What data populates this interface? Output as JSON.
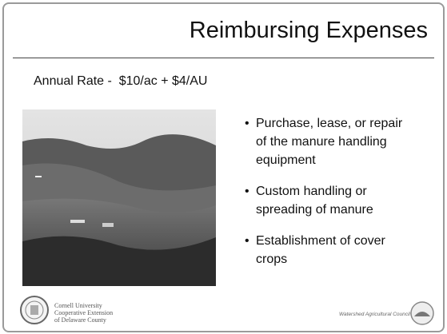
{
  "header": {
    "title": "Reimbursing Expenses"
  },
  "subtitle": "Annual Rate -  $10/ac + $4/AU",
  "bullets": [
    "Purchase, lease, or repair of the manure handling equipment",
    "Custom handling or spreading of manure",
    "Establishment of cover crops"
  ],
  "footer": {
    "left_lines": [
      "Cornell University",
      "Cooperative Extension",
      "of Delaware County"
    ],
    "right": "Watershed Agricultural Council"
  }
}
